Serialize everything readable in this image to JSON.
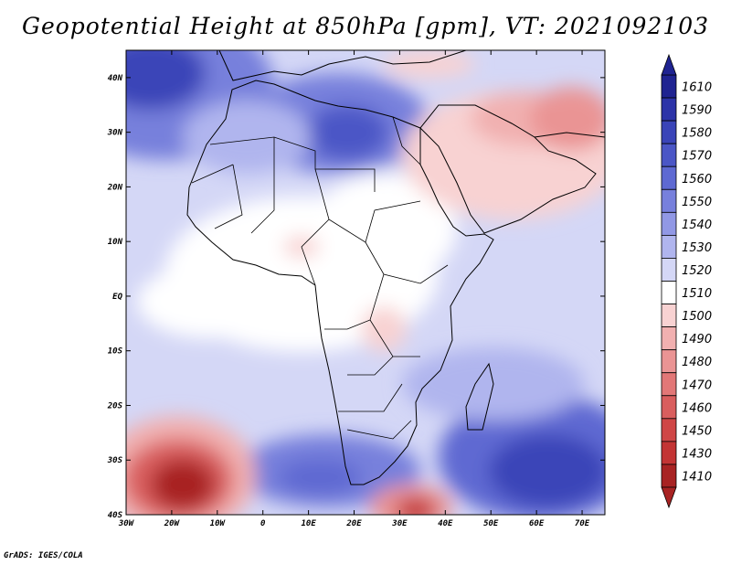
{
  "title": "Geopotential Height at 850hPa [gpm], VT: 2021092103",
  "credit": "GrADS: IGES/COLA",
  "map": {
    "lon_range": [
      -30,
      75
    ],
    "lat_range": [
      -40,
      45
    ],
    "lon_ticks": [
      {
        "value": -30,
        "label": "30W"
      },
      {
        "value": -20,
        "label": "20W"
      },
      {
        "value": -10,
        "label": "10W"
      },
      {
        "value": 0,
        "label": "0"
      },
      {
        "value": 10,
        "label": "10E"
      },
      {
        "value": 20,
        "label": "20E"
      },
      {
        "value": 30,
        "label": "30E"
      },
      {
        "value": 40,
        "label": "40E"
      },
      {
        "value": 50,
        "label": "50E"
      },
      {
        "value": 60,
        "label": "60E"
      },
      {
        "value": 70,
        "label": "70E"
      }
    ],
    "lat_ticks": [
      {
        "value": 40,
        "label": "40N"
      },
      {
        "value": 30,
        "label": "30N"
      },
      {
        "value": 20,
        "label": "20N"
      },
      {
        "value": 10,
        "label": "10N"
      },
      {
        "value": 0,
        "label": "EQ"
      },
      {
        "value": -10,
        "label": "10S"
      },
      {
        "value": -20,
        "label": "20S"
      },
      {
        "value": -30,
        "label": "30S"
      },
      {
        "value": -40,
        "label": "40S"
      }
    ],
    "features": [
      {
        "name": "low-atlantic-south",
        "lon": -15,
        "lat": -35,
        "value": 1410
      },
      {
        "name": "low-south-africa-offshore",
        "lon": 33,
        "lat": -38,
        "value": 1440
      },
      {
        "name": "low-arabia",
        "lon": 55,
        "lat": 28,
        "value": 1490
      },
      {
        "name": "low-iran",
        "lon": 65,
        "lat": 33,
        "value": 1480
      },
      {
        "name": "high-atlantic-north",
        "lon": -22,
        "lat": 40,
        "value": 1600
      },
      {
        "name": "high-libya",
        "lon": 20,
        "lat": 30,
        "value": 1580
      },
      {
        "name": "high-indian-ocean",
        "lon": 63,
        "lat": -32,
        "value": 1590
      },
      {
        "name": "high-south-of-africa",
        "lon": 15,
        "lat": -33,
        "value": 1570
      }
    ]
  },
  "colorbar": {
    "levels": [
      {
        "value": "1610",
        "color": "#1f2391"
      },
      {
        "value": "1590",
        "color": "#2c33a8"
      },
      {
        "value": "1580",
        "color": "#3a44b8"
      },
      {
        "value": "1570",
        "color": "#4b56c6"
      },
      {
        "value": "1560",
        "color": "#5e69d2"
      },
      {
        "value": "1550",
        "color": "#7780dc"
      },
      {
        "value": "1540",
        "color": "#9198e5"
      },
      {
        "value": "1530",
        "color": "#b0b5ee"
      },
      {
        "value": "1520",
        "color": "#d4d7f6"
      },
      {
        "value": "1510",
        "color": "#ffffff"
      },
      {
        "value": "1500",
        "color": "#f8d2d2"
      },
      {
        "value": "1490",
        "color": "#f1b0b0"
      },
      {
        "value": "1480",
        "color": "#ea9494"
      },
      {
        "value": "1470",
        "color": "#e27777"
      },
      {
        "value": "1460",
        "color": "#d95e5e"
      },
      {
        "value": "1450",
        "color": "#cf4646"
      },
      {
        "value": "1430",
        "color": "#c33434"
      },
      {
        "value": "1410",
        "color": "#a82323"
      }
    ]
  }
}
